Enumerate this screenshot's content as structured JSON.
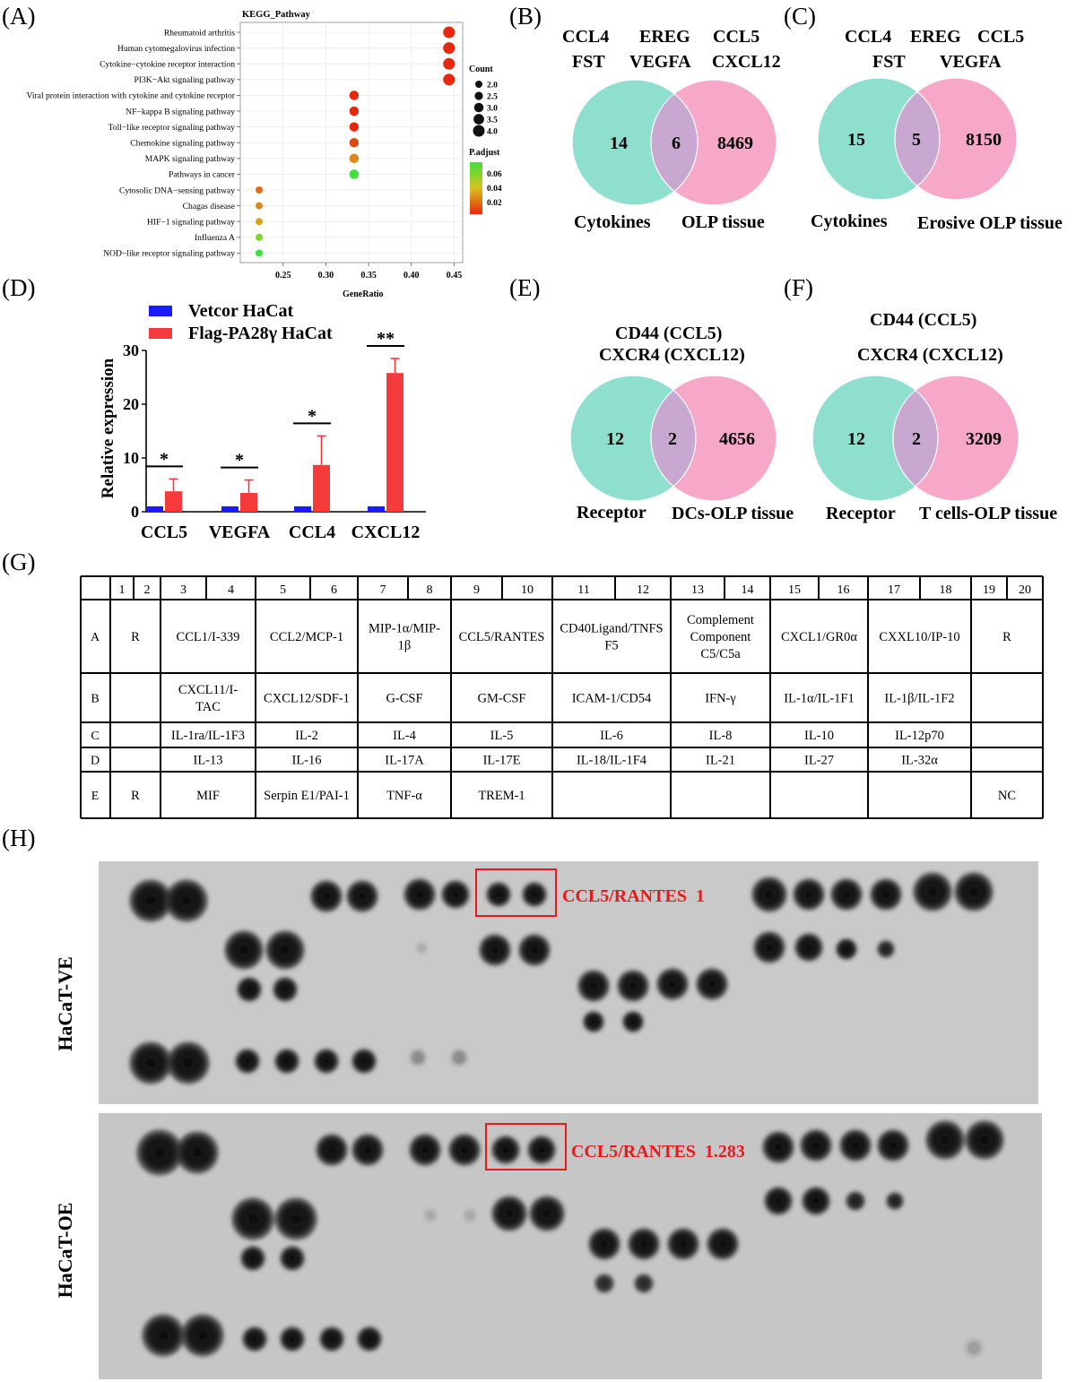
{
  "panels": {
    "A": "(A)",
    "B": "(B)",
    "C": "(C)",
    "D": "(D)",
    "E": "(E)",
    "F": "(F)",
    "G": "(G)",
    "H": "(H)"
  },
  "kegg": {
    "title": "KEGG_Pathway",
    "xlabel": "GeneRatio",
    "xticks": [
      0.25,
      0.3,
      0.35,
      0.4,
      0.45
    ],
    "xlim": [
      0.2,
      0.46
    ],
    "count_legend_title": "Count",
    "count_legend": [
      "2.0",
      "2.5",
      "3.0",
      "3.5",
      "4.0"
    ],
    "padj_legend_title": "P.adjust",
    "padj_legend": [
      "0.06",
      "0.04",
      "0.02"
    ],
    "colors": {
      "low": "#e8280e",
      "mid": "#e0a11d",
      "high": "#3ee03a"
    }
  },
  "chart_data": [
    {
      "type": "scatter",
      "title": "KEGG_Pathway",
      "xlabel": "GeneRatio",
      "ylabel": "",
      "categories": [
        "Rheumatoid arthritis",
        "Human cytomegalovirus infection",
        "Cytokine−cytokine receptor interaction",
        "PI3K−Akt signaling pathway",
        "Viral protein interaction with cytokine and cytokine receptor",
        "NF−kappa B signaling pathway",
        "Toll−like receptor signaling pathway",
        "Chemokine signaling pathway",
        "MAPK signaling pathway",
        "Pathways in cancer",
        "Cytosolic DNA−sensing pathway",
        "Chagas disease",
        "HIF−1 signaling pathway",
        "Influenza A",
        "NOD−like receptor signaling pathway"
      ],
      "x": [
        0.444,
        0.444,
        0.444,
        0.444,
        0.333,
        0.333,
        0.333,
        0.333,
        0.333,
        0.333,
        0.222,
        0.222,
        0.222,
        0.222,
        0.222
      ],
      "count": [
        4,
        4,
        4,
        4,
        3,
        3,
        3,
        3,
        3,
        3,
        2,
        2,
        2,
        2,
        2
      ],
      "padj_color": [
        "#e8280e",
        "#e8280e",
        "#e8280e",
        "#e8280e",
        "#e8280e",
        "#e8280e",
        "#e8280e",
        "#e04a12",
        "#e0881a",
        "#3ee03a",
        "#e86a16",
        "#e0881a",
        "#d9a31e",
        "#7fd62e",
        "#3ee03a"
      ],
      "xlim": [
        0.2,
        0.46
      ],
      "grid": true,
      "legend": "right"
    },
    {
      "type": "bar",
      "title": "",
      "xlabel": "",
      "ylabel": "Relative expression",
      "categories": [
        "CCL5",
        "VEGFA",
        "CCL4",
        "CXCL12"
      ],
      "ylim": [
        0,
        30
      ],
      "yticks": [
        0,
        10,
        20,
        30
      ],
      "series": [
        {
          "name": "Vetcor HaCat",
          "color": "#1a1aff",
          "values": [
            1,
            1,
            1,
            1
          ],
          "errors": [
            0,
            0,
            0,
            0
          ]
        },
        {
          "name": "Flag-PA28γ HaCat",
          "color": "#f43a3a",
          "values": [
            3.8,
            3.5,
            8.7,
            25.8
          ],
          "errors": [
            2.3,
            2.4,
            5.4,
            2.7
          ]
        }
      ],
      "significance": [
        "*",
        "*",
        "*",
        "**"
      ],
      "legend": "top"
    }
  ],
  "venns": {
    "B": {
      "top": [
        "CCL4",
        "EREG",
        "CCL5",
        "FST",
        "VEGFA",
        "CXCL12"
      ],
      "left": "14",
      "mid": "6",
      "right": "8469",
      "llabel": "Cytokines",
      "rlabel": "OLP tissue"
    },
    "C": {
      "top": [
        "CCL4",
        "EREG",
        "CCL5",
        "FST",
        "VEGFA"
      ],
      "left": "15",
      "mid": "5",
      "right": "8150",
      "llabel": "Cytokines",
      "rlabel": "Erosive OLP tissue"
    },
    "E": {
      "top": [
        "CD44 (CCL5)",
        "CXCR4 (CXCL12)"
      ],
      "left": "12",
      "mid": "2",
      "right": "4656",
      "llabel": "Receptor",
      "rlabel": "DCs-OLP tissue"
    },
    "F": {
      "top": [
        "CD44 (CCL5)",
        "CXCR4 (CXCL12)"
      ],
      "left": "12",
      "mid": "2",
      "right": "3209",
      "llabel": "Receptor",
      "rlabel": "T cells-OLP tissue"
    },
    "colors": {
      "left": "#8fdfcf",
      "right": "#f7a8c9",
      "overlap": "#c8a8d0"
    }
  },
  "array_table": {
    "cols": [
      "1",
      "2",
      "3",
      "4",
      "5",
      "6",
      "7",
      "8",
      "9",
      "10",
      "11",
      "12",
      "13",
      "14",
      "15",
      "16",
      "17",
      "18",
      "19",
      "20"
    ],
    "rows": [
      {
        "key": "A",
        "cells": [
          [
            "R"
          ],
          [
            "CCL1/I-339"
          ],
          [
            "CCL2/MCP-1"
          ],
          [
            "MIP-1α/MIP-",
            "1β"
          ],
          [
            "CCL5/RANTES"
          ],
          [
            "CD40Ligand/TNFS",
            "F5"
          ],
          [
            "Complement",
            "Component",
            "C5/C5a"
          ],
          [
            "CXCL1/GR0α"
          ],
          [
            "CXXL10/IP-10"
          ],
          [
            "R"
          ]
        ]
      },
      {
        "key": "B",
        "cells": [
          [
            ""
          ],
          [
            "CXCL11/I-",
            "TAC"
          ],
          [
            "CXCL12/SDF-1"
          ],
          [
            "G-CSF"
          ],
          [
            "GM-CSF"
          ],
          [
            "ICAM-1/CD54"
          ],
          [
            "IFN-γ"
          ],
          [
            "IL-1α/IL-1F1"
          ],
          [
            "IL-1β/IL-1F2"
          ],
          [
            ""
          ]
        ]
      },
      {
        "key": "C",
        "cells": [
          [
            ""
          ],
          [
            "IL-1ra/IL-1F3"
          ],
          [
            "IL-2"
          ],
          [
            "IL-4"
          ],
          [
            "IL-5"
          ],
          [
            "IL-6"
          ],
          [
            "IL-8"
          ],
          [
            "IL-10"
          ],
          [
            "IL-12p70"
          ],
          [
            ""
          ]
        ]
      },
      {
        "key": "D",
        "cells": [
          [
            ""
          ],
          [
            "IL-13"
          ],
          [
            "IL-16"
          ],
          [
            "IL-17A"
          ],
          [
            "IL-17E"
          ],
          [
            "IL-18/IL-1F4"
          ],
          [
            "IL-21"
          ],
          [
            "IL-27"
          ],
          [
            "IL-32α"
          ],
          [
            ""
          ]
        ]
      },
      {
        "key": "E",
        "cells": [
          [
            "R"
          ],
          [
            "MIF"
          ],
          [
            "Serpin E1/PAI-1"
          ],
          [
            "TNF-α"
          ],
          [
            "TREM-1"
          ],
          [
            ""
          ],
          [
            ""
          ],
          [
            ""
          ],
          [
            ""
          ],
          [
            "NC"
          ]
        ]
      }
    ]
  },
  "blots": {
    "ve_label": "HaCaT-VE",
    "oe_label": "HaCaT-OE",
    "ve_annot": "CCL5/RANTES  1",
    "oe_annot": "CCL5/RANTES  1.283",
    "annot_color": "#e8191c"
  }
}
